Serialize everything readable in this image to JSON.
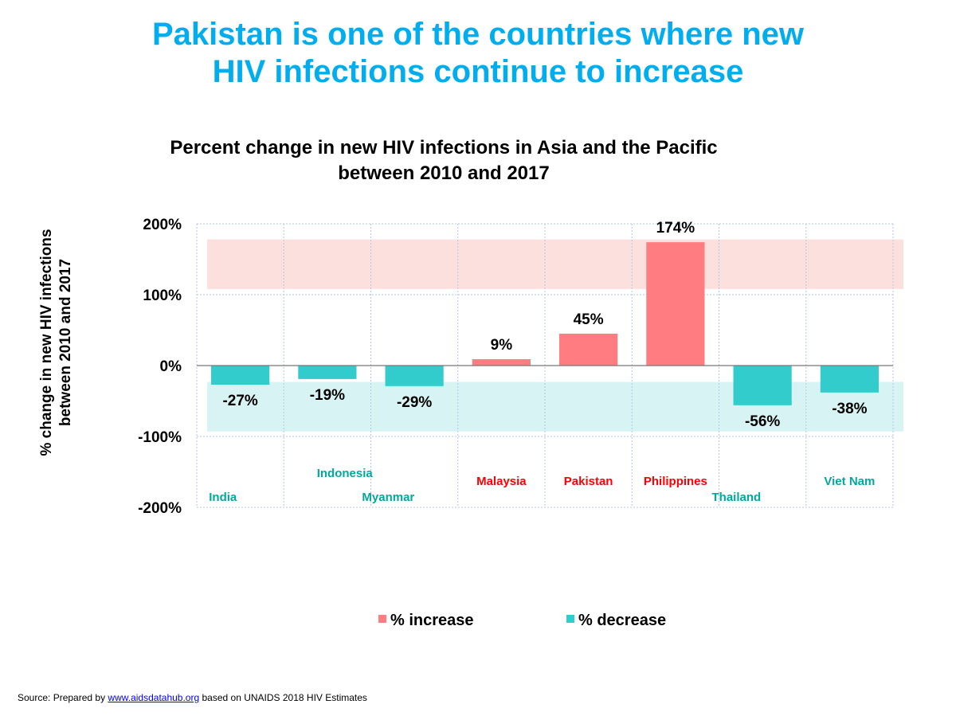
{
  "slide": {
    "title_line1": "Pakistan is one of the countries where new",
    "title_line2": "HIV infections continue to increase"
  },
  "chart_data": {
    "type": "bar",
    "title_line1": "Percent change in new HIV infections in Asia and the Pacific",
    "title_line2": "between 2010 and 2017",
    "ylabel_line1": "% change in new HIV infections",
    "ylabel_line2": "between 2010 and 2017",
    "categories": [
      "India",
      "Indonesia",
      "Myanmar",
      "Malaysia",
      "Pakistan",
      "Philippines",
      "Thailand",
      "Viet Nam"
    ],
    "values": [
      -27,
      -19,
      -29,
      9,
      45,
      174,
      -56,
      -38
    ],
    "value_labels": [
      "-27%",
      "-19%",
      "-29%",
      "9%",
      "45%",
      "174%",
      "-56%",
      "-38%"
    ],
    "ylim": [
      -200,
      200
    ],
    "yticks": [
      200,
      100,
      0,
      -100,
      -200
    ],
    "ytick_labels": [
      "200%",
      "100%",
      "0%",
      "-100%",
      "-200%"
    ],
    "grid": true,
    "legend_placement": "bottom",
    "legend": [
      {
        "name": "% increase",
        "color": "#ff7c80"
      },
      {
        "name": "% decrease",
        "color": "#33cccc"
      }
    ],
    "highlight_bands": [
      {
        "from": 108,
        "to": 178,
        "color": "#fbe0dd"
      },
      {
        "from": -93,
        "to": -23,
        "color": "#d8f3f3"
      }
    ],
    "colors": {
      "increase": "#ff7c80",
      "decrease": "#33cccc",
      "increase_label": "#ff0000",
      "decrease_label": "#00a99d",
      "grid": "#b4c7e7"
    }
  },
  "source": {
    "prefix": "Source: Prepared by ",
    "link": "www.aidsdatahub.org",
    "suffix": " based on UNAIDS 2018 HIV Estimates"
  }
}
